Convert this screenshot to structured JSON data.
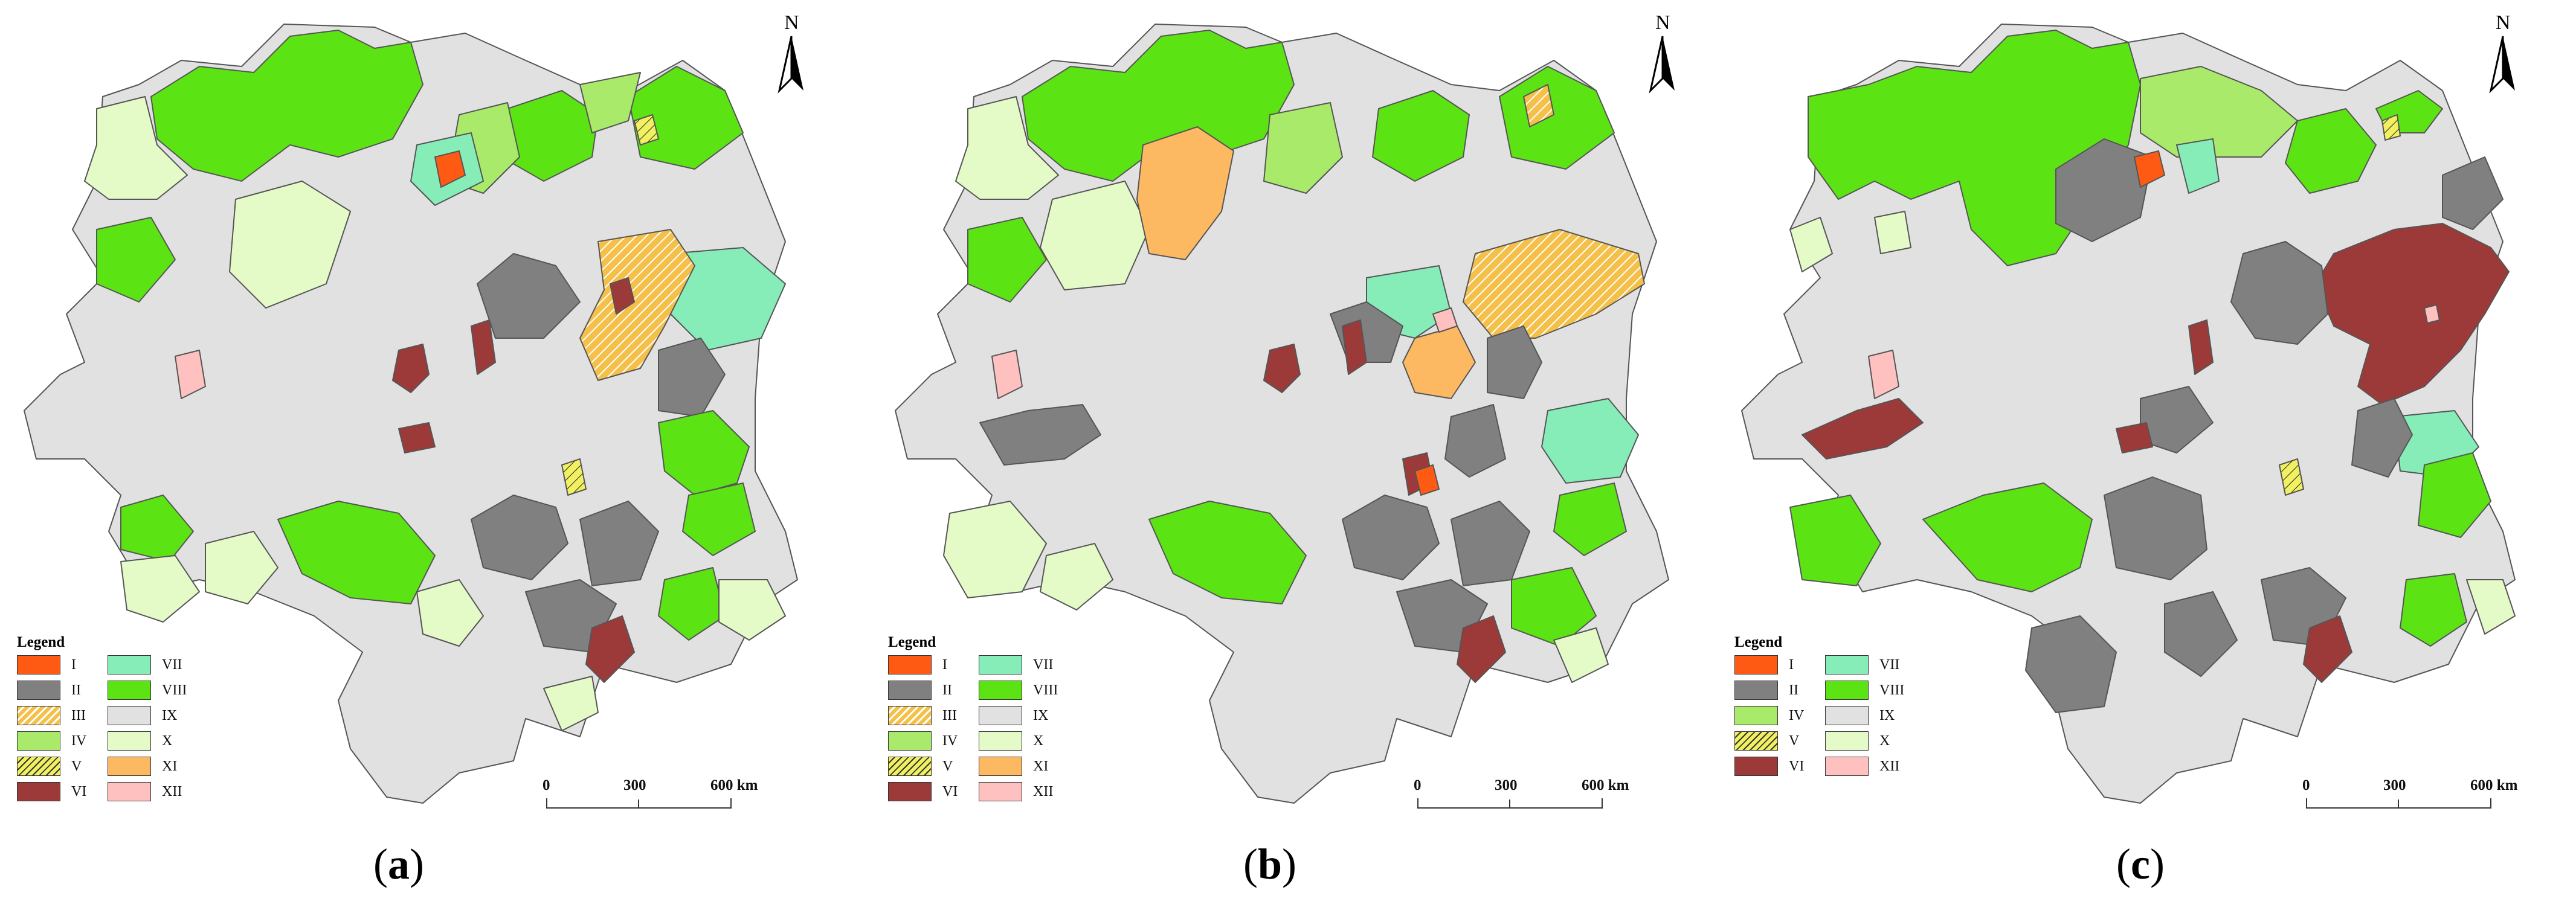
{
  "figure": {
    "colors": {
      "I": "#ff5a14",
      "II": "#808080",
      "III": "#f5c04a",
      "IV": "#a9ea6a",
      "V": "#f0f060",
      "VI": "#9c3a3a",
      "VII": "#86ecb8",
      "VIII": "#5ce314",
      "IX": "#e1e1e1",
      "X": "#e4fbc8",
      "XI": "#fdb962",
      "XII": "#ffc0c0"
    },
    "panels": [
      {
        "label_open": "(",
        "label_letter": "a",
        "label_close": ")",
        "north": "N",
        "legend_title": "Legend",
        "legend_items": [
          {
            "code": "I",
            "label": "I"
          },
          {
            "code": "II",
            "label": "II"
          },
          {
            "code": "III",
            "label": "III"
          },
          {
            "code": "IV",
            "label": "IV"
          },
          {
            "code": "V",
            "label": "V"
          },
          {
            "code": "VI",
            "label": "VI"
          },
          {
            "code": "VII",
            "label": "VII"
          },
          {
            "code": "VIII",
            "label": "VIII"
          },
          {
            "code": "IX",
            "label": "IX"
          },
          {
            "code": "X",
            "label": "X"
          },
          {
            "code": "XI",
            "label": "XI"
          },
          {
            "code": "XII",
            "label": "XII"
          }
        ],
        "scale": {
          "t0": "0",
          "t1": "300",
          "t2": "600 km"
        }
      },
      {
        "label_open": "(",
        "label_letter": "b",
        "label_close": ")",
        "north": "N",
        "legend_title": "Legend",
        "legend_items": [
          {
            "code": "I",
            "label": "I"
          },
          {
            "code": "II",
            "label": "II"
          },
          {
            "code": "III",
            "label": "III"
          },
          {
            "code": "IV",
            "label": "IV"
          },
          {
            "code": "V",
            "label": "V"
          },
          {
            "code": "VI",
            "label": "VI"
          },
          {
            "code": "VII",
            "label": "VII"
          },
          {
            "code": "VIII",
            "label": "VIII"
          },
          {
            "code": "IX",
            "label": "IX"
          },
          {
            "code": "X",
            "label": "X"
          },
          {
            "code": "XI",
            "label": "XI"
          },
          {
            "code": "XII",
            "label": "XII"
          }
        ],
        "scale": {
          "t0": "0",
          "t1": "300",
          "t2": "600 km"
        }
      },
      {
        "label_open": "(",
        "label_letter": "c",
        "label_close": ")",
        "north": "N",
        "legend_title": "Legend",
        "legend_items": [
          {
            "code": "I",
            "label": "I"
          },
          {
            "code": "II",
            "label": "II"
          },
          {
            "code": "IV",
            "label": "IV"
          },
          {
            "code": "V",
            "label": "V"
          },
          {
            "code": "VI",
            "label": "VI"
          },
          {
            "code": "VII",
            "label": "VII"
          },
          {
            "code": "VIII",
            "label": "VIII"
          },
          {
            "code": "IX",
            "label": "IX"
          },
          {
            "code": "X",
            "label": "X"
          },
          {
            "code": "XII",
            "label": "XII"
          }
        ],
        "scale": {
          "t0": "0",
          "t1": "300",
          "t2": "600 km"
        }
      }
    ]
  }
}
